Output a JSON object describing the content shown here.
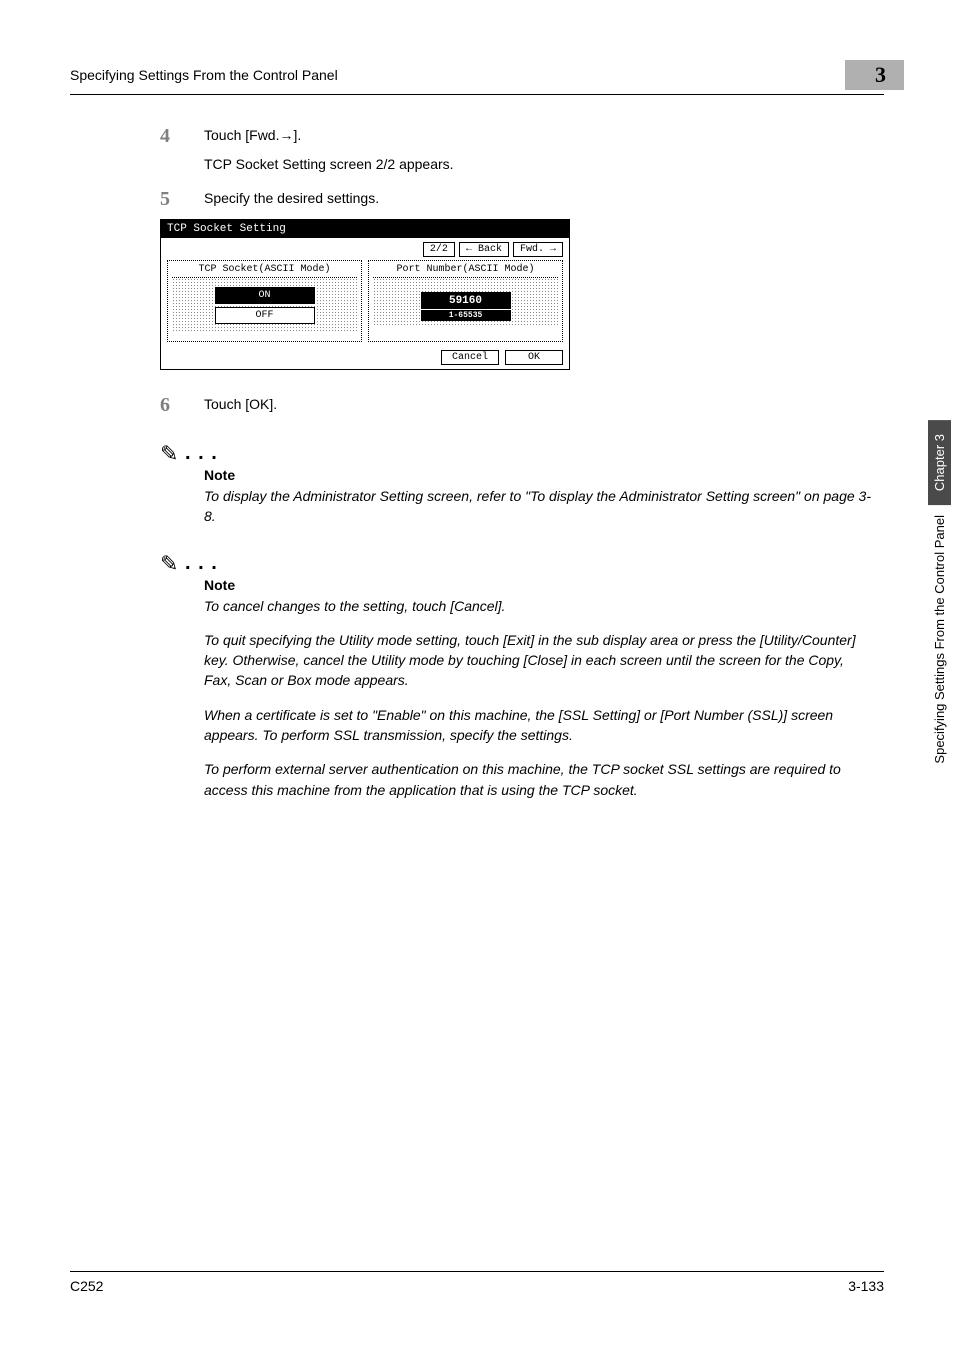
{
  "header": {
    "title": "Specifying Settings From the Control Panel",
    "chapter_number": "3"
  },
  "steps": {
    "s4": {
      "num": "4",
      "text": "Touch [Fwd.→].",
      "sub": "TCP Socket Setting screen 2/2 appears."
    },
    "s5": {
      "num": "5",
      "text": "Specify the desired settings."
    },
    "s6": {
      "num": "6",
      "text": "Touch [OK]."
    }
  },
  "screenshot": {
    "title": "TCP Socket Setting",
    "page_indicator": "2/2",
    "back_btn": "Back",
    "fwd_btn": "Fwd.",
    "left_label": "TCP Socket(ASCII Mode)",
    "right_label": "Port Number(ASCII Mode)",
    "on_label": "ON",
    "off_label": "OFF",
    "port_value": "59160",
    "port_range": "1-65535",
    "cancel_btn": "Cancel",
    "ok_btn": "OK",
    "colors": {
      "titlebar_bg": "#000000",
      "titlebar_fg": "#ffffff",
      "panel_bg": "#ffffff",
      "halftone": "#888888"
    }
  },
  "note1": {
    "label": "Note",
    "text": "To display the Administrator Setting screen, refer to \"To display the Administrator Setting screen\" on page 3-8."
  },
  "note2": {
    "label": "Note",
    "p1": "To cancel changes to the setting, touch [Cancel].",
    "p2": "To quit specifying the Utility mode setting, touch [Exit] in the sub display area or press the [Utility/Counter] key. Otherwise, cancel the Utility mode by touching [Close] in each screen until the screen for the Copy, Fax, Scan or Box mode appears.",
    "p3": "When a certificate is set to \"Enable\" on this machine, the [SSL Setting] or [Port Number (SSL)] screen appears. To perform SSL transmission, specify the settings.",
    "p4": "To perform external server authentication on this machine, the TCP socket SSL settings are required to access this machine from the application that is using the TCP socket."
  },
  "sidetab": {
    "dark": "Chapter 3",
    "light": "Specifying Settings From the Control Panel"
  },
  "footer": {
    "left": "C252",
    "right": "3-133"
  }
}
